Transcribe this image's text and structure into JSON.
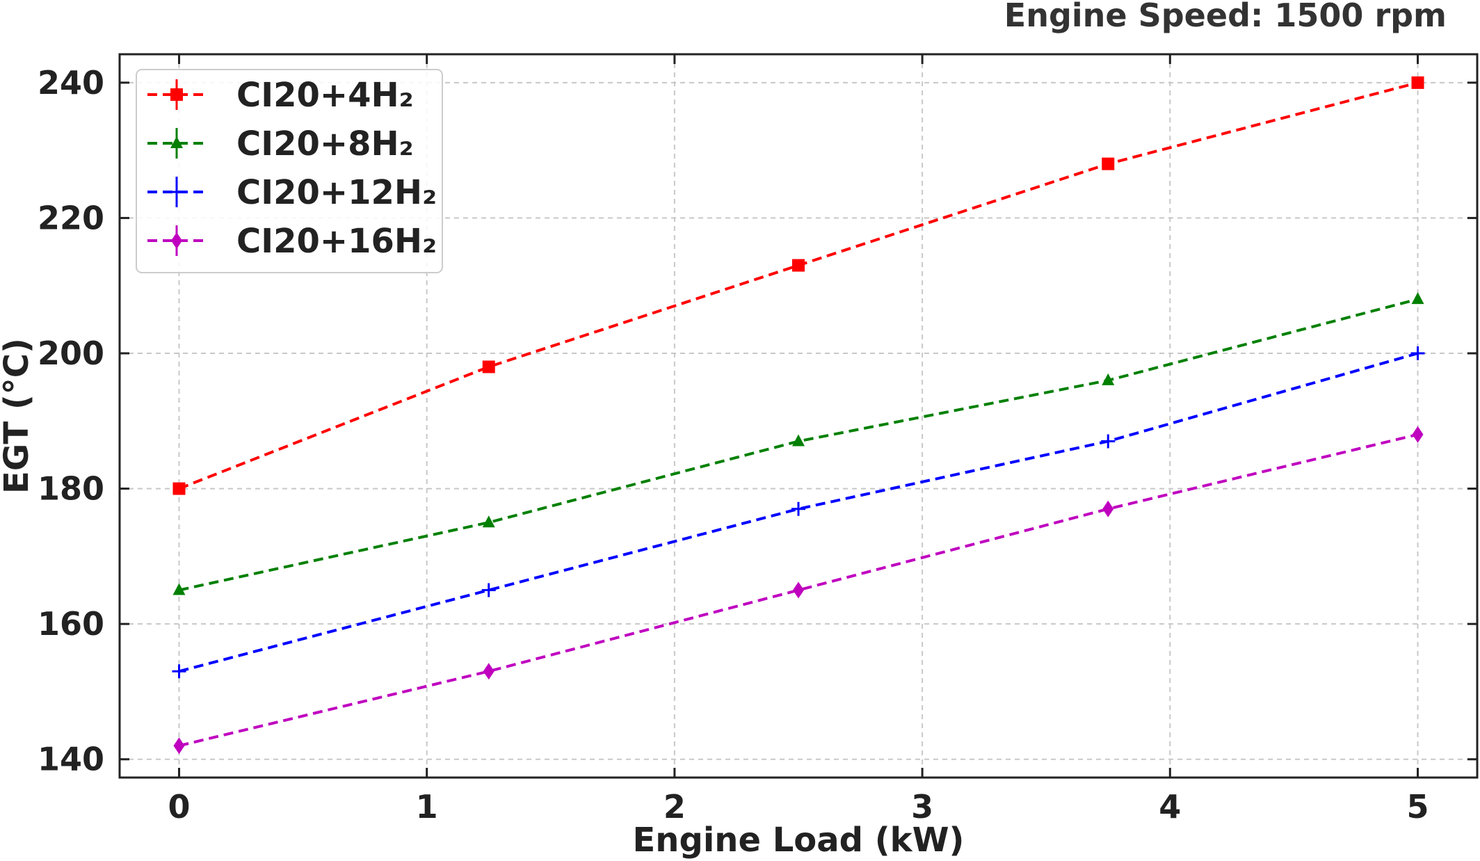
{
  "header_note": "Engine Speed: 1500 rpm",
  "chart_data": {
    "type": "line",
    "title": "",
    "xlabel": "Engine Load (kW)",
    "ylabel": "EGT (°C)",
    "x": [
      0,
      1.25,
      2.5,
      3.75,
      5
    ],
    "xlim": [
      -0.24,
      5.24
    ],
    "ylim": [
      137.3,
      244.2
    ],
    "xticks": [
      0,
      1,
      2,
      3,
      4,
      5
    ],
    "xtick_labels": [
      "0",
      "1",
      "2",
      "3",
      "4",
      "5"
    ],
    "yticks": [
      140,
      160,
      180,
      200,
      220,
      240
    ],
    "ytick_labels": [
      "140",
      "160",
      "180",
      "200",
      "220",
      "240"
    ],
    "grid": true,
    "legend_position": "top-left",
    "series": [
      {
        "name": "CI20+4H₂",
        "color": "#ff0000",
        "marker": "square",
        "values": [
          180,
          198,
          213,
          228,
          240
        ]
      },
      {
        "name": "CI20+8H₂",
        "color": "#008000",
        "marker": "triangle",
        "values": [
          165,
          175,
          187,
          196,
          208
        ]
      },
      {
        "name": "CI20+12H₂",
        "color": "#0000ff",
        "marker": "plus",
        "values": [
          153,
          165,
          177,
          187,
          200
        ]
      },
      {
        "name": "CI20+16H₂",
        "color": "#bf00bf",
        "marker": "diamond",
        "values": [
          142,
          153,
          165,
          177,
          188
        ]
      }
    ]
  }
}
